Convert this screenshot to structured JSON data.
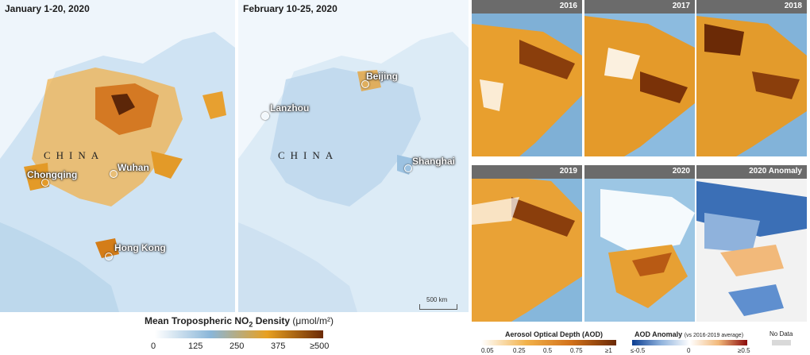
{
  "maps": {
    "left": {
      "title": "January 1-20, 2020",
      "country": "CHINA",
      "cities": [
        "Chongqing",
        "Wuhan",
        "Hong Kong"
      ]
    },
    "middle": {
      "title": "February 10-25, 2020",
      "country": "CHINA",
      "cities": [
        "Beijing",
        "Lanzhou",
        "Shanghai"
      ],
      "scale": "500 km"
    }
  },
  "tiles": [
    "2016",
    "2017",
    "2018",
    "2019",
    "2020",
    "2020 Anomaly"
  ],
  "legends": {
    "no2": {
      "title": "Mean Tropospheric NO",
      "sub": "2",
      "title_end": " Density",
      "unit": "(μmol/m²)",
      "ticks": [
        "0",
        "125",
        "250",
        "375",
        "≥500"
      ]
    },
    "aod": {
      "title": "Aerosol Optical Depth (AOD)",
      "ticks": [
        "0.05",
        "0.25",
        "0.5",
        "0.75",
        "≥1"
      ]
    },
    "anomaly": {
      "title": "AOD Anomaly",
      "note": "(vs 2016-2019 average)",
      "ticks": [
        "≤-0.5",
        "0",
        "≥0.5"
      ]
    },
    "nodata": {
      "label": "No Data"
    }
  },
  "colors": {
    "no2_low": "#ffffff",
    "no2_mid": "#8ab6d8",
    "no2_high": "#e8a020",
    "no2_max": "#6b2a06",
    "anomaly_low": "#0b3d91",
    "anomaly_high": "#8b0a0a",
    "nodata": "#d9d9d9"
  }
}
